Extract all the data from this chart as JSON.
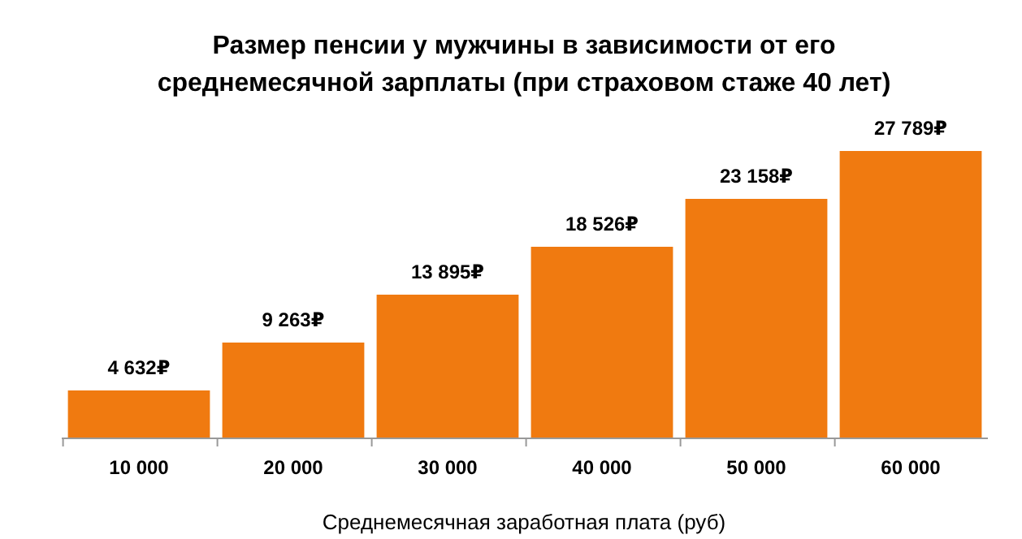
{
  "chart_data": {
    "type": "bar",
    "title": "Размер пенсии у мужчины в зависимости от его среднемесячной зарплаты (при страховом стаже 40 лет)",
    "xlabel": "Среднемесячная заработная плата (руб)",
    "categories": [
      "10 000",
      "20 000",
      "30 000",
      "40 000",
      "50 000",
      "60 000"
    ],
    "values": [
      4632,
      9263,
      13895,
      18526,
      23158,
      27789
    ],
    "value_labels": [
      "4 632₽",
      "9 263₽",
      "13 895₽",
      "18 526₽",
      "23 158₽",
      "27 789₽"
    ],
    "color": "#f07a10"
  }
}
